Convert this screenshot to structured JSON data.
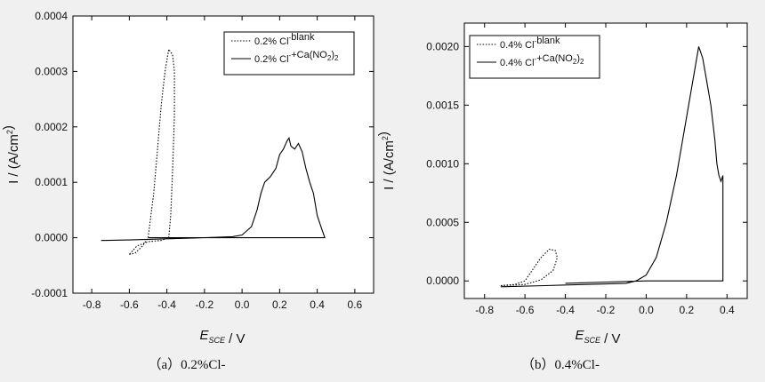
{
  "chart_data": [
    {
      "type": "line",
      "caption": "（a）0.2%Cl-",
      "xlabel": "E_SCE / V",
      "ylabel": "I / (A/cm2)",
      "xlim": [
        -0.9,
        0.7
      ],
      "ylim": [
        -0.0001,
        0.0004
      ],
      "xticks": [
        "-0.8",
        "-0.6",
        "-0.4",
        "-0.2",
        "0.0",
        "0.2",
        "0.4",
        "0.6"
      ],
      "yticks": [
        "-0.0001",
        "0.0000",
        "0.0001",
        "0.0002",
        "0.0003",
        "0.0004"
      ],
      "legend_position": "top-right",
      "series": [
        {
          "name": "0.2% Cl-blank",
          "style": "dotted",
          "points": [
            [
              -0.6,
              -3e-05
            ],
            [
              -0.57,
              -2.8e-05
            ],
            [
              -0.53,
              -1.5e-05
            ],
            [
              -0.5,
              0.0
            ],
            [
              -0.47,
              8e-05
            ],
            [
              -0.45,
              0.00016
            ],
            [
              -0.43,
              0.00024
            ],
            [
              -0.41,
              0.0003
            ],
            [
              -0.39,
              0.00034
            ],
            [
              -0.37,
              0.00033
            ],
            [
              -0.36,
              0.0003
            ],
            [
              -0.36,
              0.00022
            ],
            [
              -0.37,
              0.00012
            ],
            [
              -0.38,
              4e-05
            ],
            [
              -0.39,
              0.0
            ],
            [
              -0.43,
              -5e-06
            ],
            [
              -0.5,
              -7e-06
            ],
            [
              -0.56,
              -1.5e-05
            ],
            [
              -0.6,
              -3e-05
            ]
          ]
        },
        {
          "name": "0.2% Cl-+Ca(NO2)2",
          "style": "solid",
          "points": [
            [
              -0.75,
              -5e-06
            ],
            [
              -0.6,
              -4e-06
            ],
            [
              -0.4,
              -2e-06
            ],
            [
              -0.2,
              0.0
            ],
            [
              -0.05,
              2e-06
            ],
            [
              0.0,
              5e-06
            ],
            [
              0.05,
              2e-05
            ],
            [
              0.08,
              5e-05
            ],
            [
              0.1,
              8e-05
            ],
            [
              0.12,
              0.0001
            ],
            [
              0.15,
              0.00011
            ],
            [
              0.18,
              0.000125
            ],
            [
              0.2,
              0.00015
            ],
            [
              0.22,
              0.00016
            ],
            [
              0.24,
              0.000175
            ],
            [
              0.25,
              0.00018
            ],
            [
              0.26,
              0.000165
            ],
            [
              0.28,
              0.00016
            ],
            [
              0.3,
              0.00017
            ],
            [
              0.32,
              0.000155
            ],
            [
              0.34,
              0.000125
            ],
            [
              0.36,
              0.0001
            ],
            [
              0.38,
              8e-05
            ],
            [
              0.4,
              4e-05
            ],
            [
              0.42,
              2e-05
            ],
            [
              0.44,
              0.0
            ],
            [
              0.3,
              0.0
            ],
            [
              0.0,
              0.0
            ],
            [
              -0.2,
              0.0
            ],
            [
              -0.4,
              0.0
            ],
            [
              -0.5,
              0.0
            ]
          ]
        }
      ]
    },
    {
      "type": "line",
      "caption": "（b）0.4%Cl-",
      "xlabel": "E_SCE / V",
      "ylabel": "I / (A/cm2)",
      "xlim": [
        -0.9,
        0.5
      ],
      "ylim": [
        -0.00015,
        0.0022
      ],
      "xticks": [
        "-0.8",
        "-0.6",
        "-0.4",
        "-0.2",
        "0.0",
        "0.2",
        "0.4"
      ],
      "yticks": [
        "0.0000",
        "0.0005",
        "0.0010",
        "0.0015",
        "0.0020"
      ],
      "legend_position": "top-left",
      "series": [
        {
          "name": "0.4% Cl-blank",
          "style": "dotted",
          "points": [
            [
              -0.72,
              -4e-05
            ],
            [
              -0.65,
              -3e-05
            ],
            [
              -0.6,
              0.0
            ],
            [
              -0.56,
              0.0001
            ],
            [
              -0.52,
              0.0002
            ],
            [
              -0.48,
              0.00027
            ],
            [
              -0.45,
              0.00026
            ],
            [
              -0.44,
              0.0002
            ],
            [
              -0.46,
              9e-05
            ],
            [
              -0.52,
              1e-05
            ],
            [
              -0.6,
              -3e-05
            ],
            [
              -0.72,
              -4e-05
            ]
          ]
        },
        {
          "name": "0.4% Cl-+Ca(NO2)2",
          "style": "solid",
          "points": [
            [
              -0.72,
              -5e-05
            ],
            [
              -0.5,
              -4e-05
            ],
            [
              -0.3,
              -3e-05
            ],
            [
              -0.1,
              -2e-05
            ],
            [
              -0.05,
              0.0
            ],
            [
              0.0,
              5e-05
            ],
            [
              0.05,
              0.0002
            ],
            [
              0.1,
              0.0005
            ],
            [
              0.15,
              0.0009
            ],
            [
              0.2,
              0.0014
            ],
            [
              0.23,
              0.0017
            ],
            [
              0.26,
              0.002
            ],
            [
              0.28,
              0.0019
            ],
            [
              0.3,
              0.0017
            ],
            [
              0.32,
              0.0015
            ],
            [
              0.34,
              0.0012
            ],
            [
              0.35,
              0.001
            ],
            [
              0.36,
              0.0009
            ],
            [
              0.37,
              0.00085
            ],
            [
              0.38,
              0.0009
            ],
            [
              0.38,
              0.0002
            ],
            [
              0.38,
              0.0
            ],
            [
              0.2,
              0.0
            ],
            [
              0.0,
              0.0
            ],
            [
              -0.2,
              -1e-05
            ],
            [
              -0.4,
              -2e-05
            ]
          ]
        }
      ]
    }
  ]
}
